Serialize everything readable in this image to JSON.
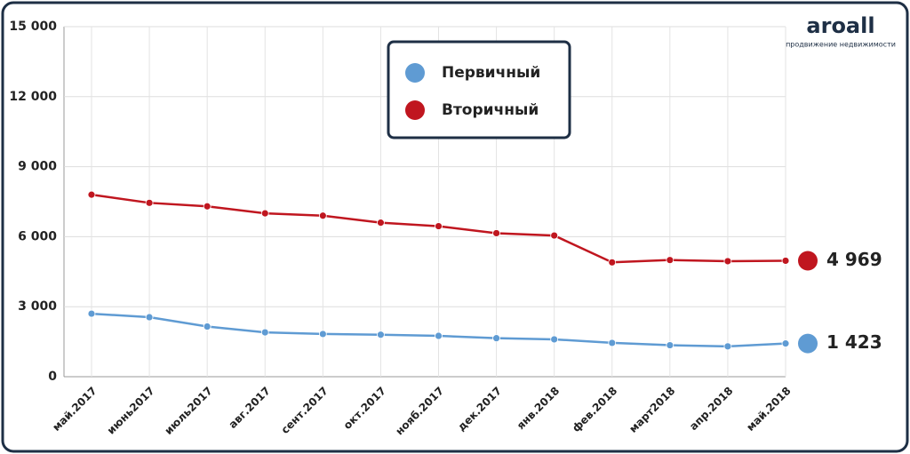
{
  "chart_data": {
    "type": "line",
    "logo": {
      "name": "aroall",
      "tagline": "продвижение недвижимости"
    },
    "categories": [
      "май.2017",
      "июнь2017",
      "июль2017",
      "авг.2017",
      "сент.2017",
      "окт.2017",
      "нояб.2017",
      "дек.2017",
      "янв.2018",
      "фев.2018",
      "март2018",
      "апр.2018",
      "май.2018"
    ],
    "series": [
      {
        "name": "Первичный",
        "color": "#5f9bd3",
        "values": [
          2700,
          2550,
          2150,
          1900,
          1830,
          1800,
          1750,
          1650,
          1600,
          1450,
          1350,
          1300,
          1423
        ],
        "value_labels": [
          null,
          null,
          null,
          null,
          null,
          null,
          null,
          null,
          null,
          null,
          null,
          null,
          "1 423"
        ]
      },
      {
        "name": "Вторичный",
        "color": "#c0161f",
        "values": [
          7800,
          7450,
          7300,
          7000,
          6900,
          6600,
          6450,
          6150,
          6050,
          4900,
          5000,
          4950,
          4969
        ],
        "value_labels": [
          null,
          null,
          null,
          null,
          null,
          null,
          null,
          null,
          null,
          null,
          null,
          null,
          "4 969"
        ]
      }
    ],
    "ylim": [
      0,
      15000
    ],
    "yticks": [
      0,
      {
        "value": 3000,
        "label": "3 000"
      },
      {
        "value": 6000,
        "label": "6 000"
      },
      {
        "value": 9000,
        "label": "9 000"
      },
      {
        "value": 12000,
        "label": "12 000"
      },
      {
        "value": 15000,
        "label": "15 000"
      }
    ],
    "grid": true,
    "legend": "top"
  }
}
